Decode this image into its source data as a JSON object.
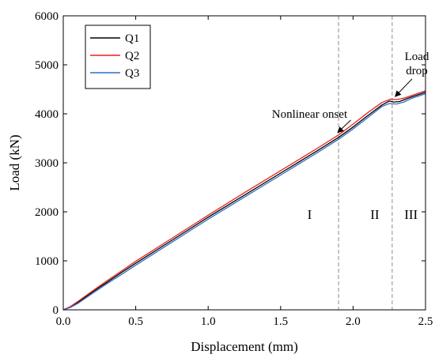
{
  "chart_data": {
    "type": "line",
    "title": "",
    "xlabel": "Displacement (mm)",
    "ylabel": "Load (kN)",
    "xlim": [
      0.0,
      2.5
    ],
    "ylim": [
      0,
      6000
    ],
    "xticks": [
      0.0,
      0.5,
      1.0,
      1.5,
      2.0,
      2.5
    ],
    "xtick_labels": [
      "0.0",
      "0.5",
      "1.0",
      "1.5",
      "2.0",
      "2.5"
    ],
    "yticks": [
      0,
      1000,
      2000,
      3000,
      4000,
      5000,
      6000
    ],
    "ytick_labels": [
      "0",
      "1000",
      "2000",
      "3000",
      "4000",
      "5000",
      "6000"
    ],
    "grid": false,
    "legend_position": "top-left",
    "series": [
      {
        "name": "Q1",
        "color": "#000000",
        "x": [
          0.0,
          0.05,
          0.1,
          0.2,
          0.3,
          0.4,
          0.5,
          0.75,
          1.0,
          1.25,
          1.5,
          1.75,
          1.9,
          2.0,
          2.1,
          2.2,
          2.25,
          2.28,
          2.32,
          2.4,
          2.5
        ],
        "y": [
          0,
          60,
          150,
          360,
          560,
          760,
          950,
          1420,
          1890,
          2340,
          2790,
          3240,
          3520,
          3730,
          3960,
          4180,
          4260,
          4240,
          4250,
          4340,
          4440
        ]
      },
      {
        "name": "Q2",
        "color": "#e8211f",
        "x": [
          0.0,
          0.05,
          0.1,
          0.2,
          0.3,
          0.4,
          0.5,
          0.75,
          1.0,
          1.25,
          1.5,
          1.75,
          1.9,
          2.0,
          2.1,
          2.2,
          2.26,
          2.3,
          2.35,
          2.4,
          2.5
        ],
        "y": [
          0,
          70,
          170,
          380,
          590,
          790,
          990,
          1460,
          1930,
          2390,
          2840,
          3290,
          3570,
          3790,
          4020,
          4230,
          4300,
          4290,
          4320,
          4370,
          4470
        ]
      },
      {
        "name": "Q3",
        "color": "#2f6fc4",
        "x": [
          0.0,
          0.05,
          0.1,
          0.2,
          0.3,
          0.4,
          0.5,
          0.75,
          1.0,
          1.25,
          1.5,
          1.75,
          1.9,
          2.0,
          2.1,
          2.2,
          2.25,
          2.3,
          2.35,
          2.4,
          2.5
        ],
        "y": [
          0,
          50,
          130,
          330,
          530,
          720,
          910,
          1380,
          1850,
          2300,
          2750,
          3200,
          3480,
          3690,
          3920,
          4150,
          4210,
          4200,
          4240,
          4310,
          4410
        ]
      }
    ],
    "vlines": [
      1.9,
      2.27
    ],
    "region_labels": [
      {
        "text": "I",
        "x": 1.7,
        "y": 1950
      },
      {
        "text": "II",
        "x": 2.15,
        "y": 1950
      },
      {
        "text": "III",
        "x": 2.4,
        "y": 1950
      }
    ],
    "annotations": [
      {
        "id": "nonlinear",
        "text": "Nonlinear onset",
        "text_x": 1.7,
        "text_y": 3920,
        "arrow_x": 1.9,
        "arrow_y": 3570
      },
      {
        "id": "loaddrop",
        "text_lines": [
          "Load",
          "drop"
        ],
        "text_x": 2.44,
        "text_y": 5100,
        "arrow_x": 2.28,
        "arrow_y": 4290
      }
    ]
  }
}
